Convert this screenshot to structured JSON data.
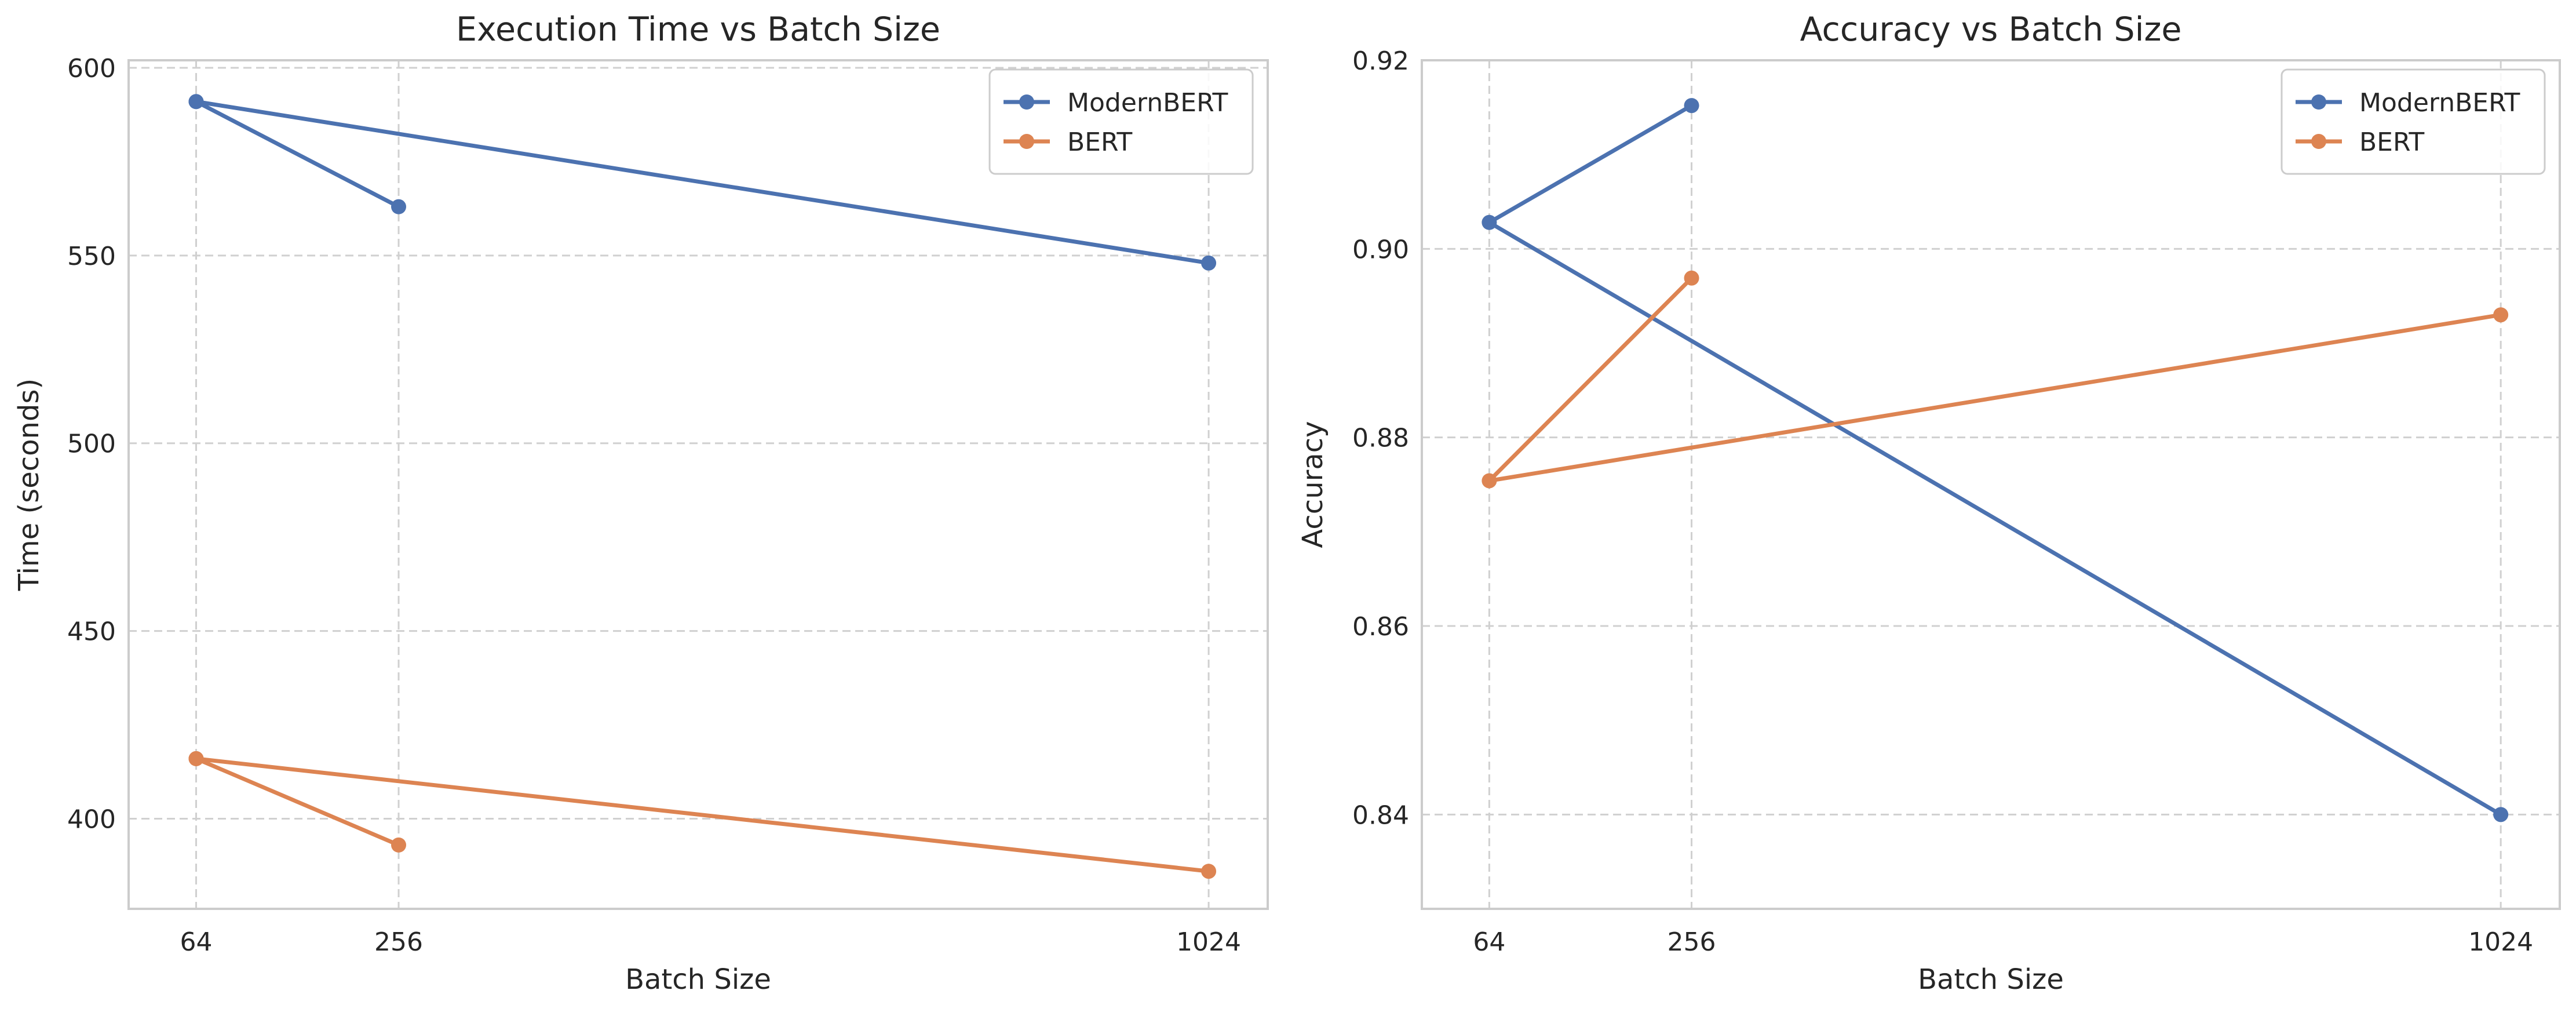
{
  "chart_data": [
    {
      "type": "line",
      "title": "Execution Time vs Batch Size",
      "xlabel": "Batch Size",
      "ylabel": "Time (seconds)",
      "x_ticks": [
        64,
        256,
        1024
      ],
      "x_tick_labels": [
        "64",
        "256",
        "1024"
      ],
      "y_ticks": [
        400,
        450,
        500,
        550,
        600
      ],
      "y_tick_labels": [
        "400",
        "450",
        "500",
        "550",
        "600"
      ],
      "xlim": [
        0,
        1080
      ],
      "ylim": [
        376,
        602
      ],
      "grid": true,
      "legend_position": "top-right",
      "series": [
        {
          "name": "ModernBERT",
          "color": "#4c72b0",
          "x": [
            64,
            1024,
            64,
            256
          ],
          "y": [
            591,
            548,
            591,
            563
          ]
        },
        {
          "name": "BERT",
          "color": "#dd8452",
          "x": [
            64,
            1024,
            64,
            256
          ],
          "y": [
            416,
            386,
            416,
            393
          ]
        }
      ]
    },
    {
      "type": "line",
      "title": "Accuracy vs Batch Size",
      "xlabel": "Batch Size",
      "ylabel": "Accuracy",
      "x_ticks": [
        64,
        256,
        1024
      ],
      "x_tick_labels": [
        "64",
        "256",
        "1024"
      ],
      "y_ticks": [
        0.84,
        0.86,
        0.88,
        0.9,
        0.92
      ],
      "y_tick_labels": [
        "0.84",
        "0.86",
        "0.88",
        "0.90",
        "0.92"
      ],
      "xlim": [
        0,
        1080
      ],
      "ylim": [
        0.83,
        0.92
      ],
      "grid": true,
      "legend_position": "top-right",
      "series": [
        {
          "name": "ModernBERT",
          "color": "#4c72b0",
          "x": [
            256,
            64,
            1024
          ],
          "y": [
            0.9152,
            0.9028,
            0.84
          ]
        },
        {
          "name": "BERT",
          "color": "#dd8452",
          "x": [
            256,
            64,
            1024
          ],
          "y": [
            0.8969,
            0.8754,
            0.893
          ]
        }
      ]
    }
  ]
}
